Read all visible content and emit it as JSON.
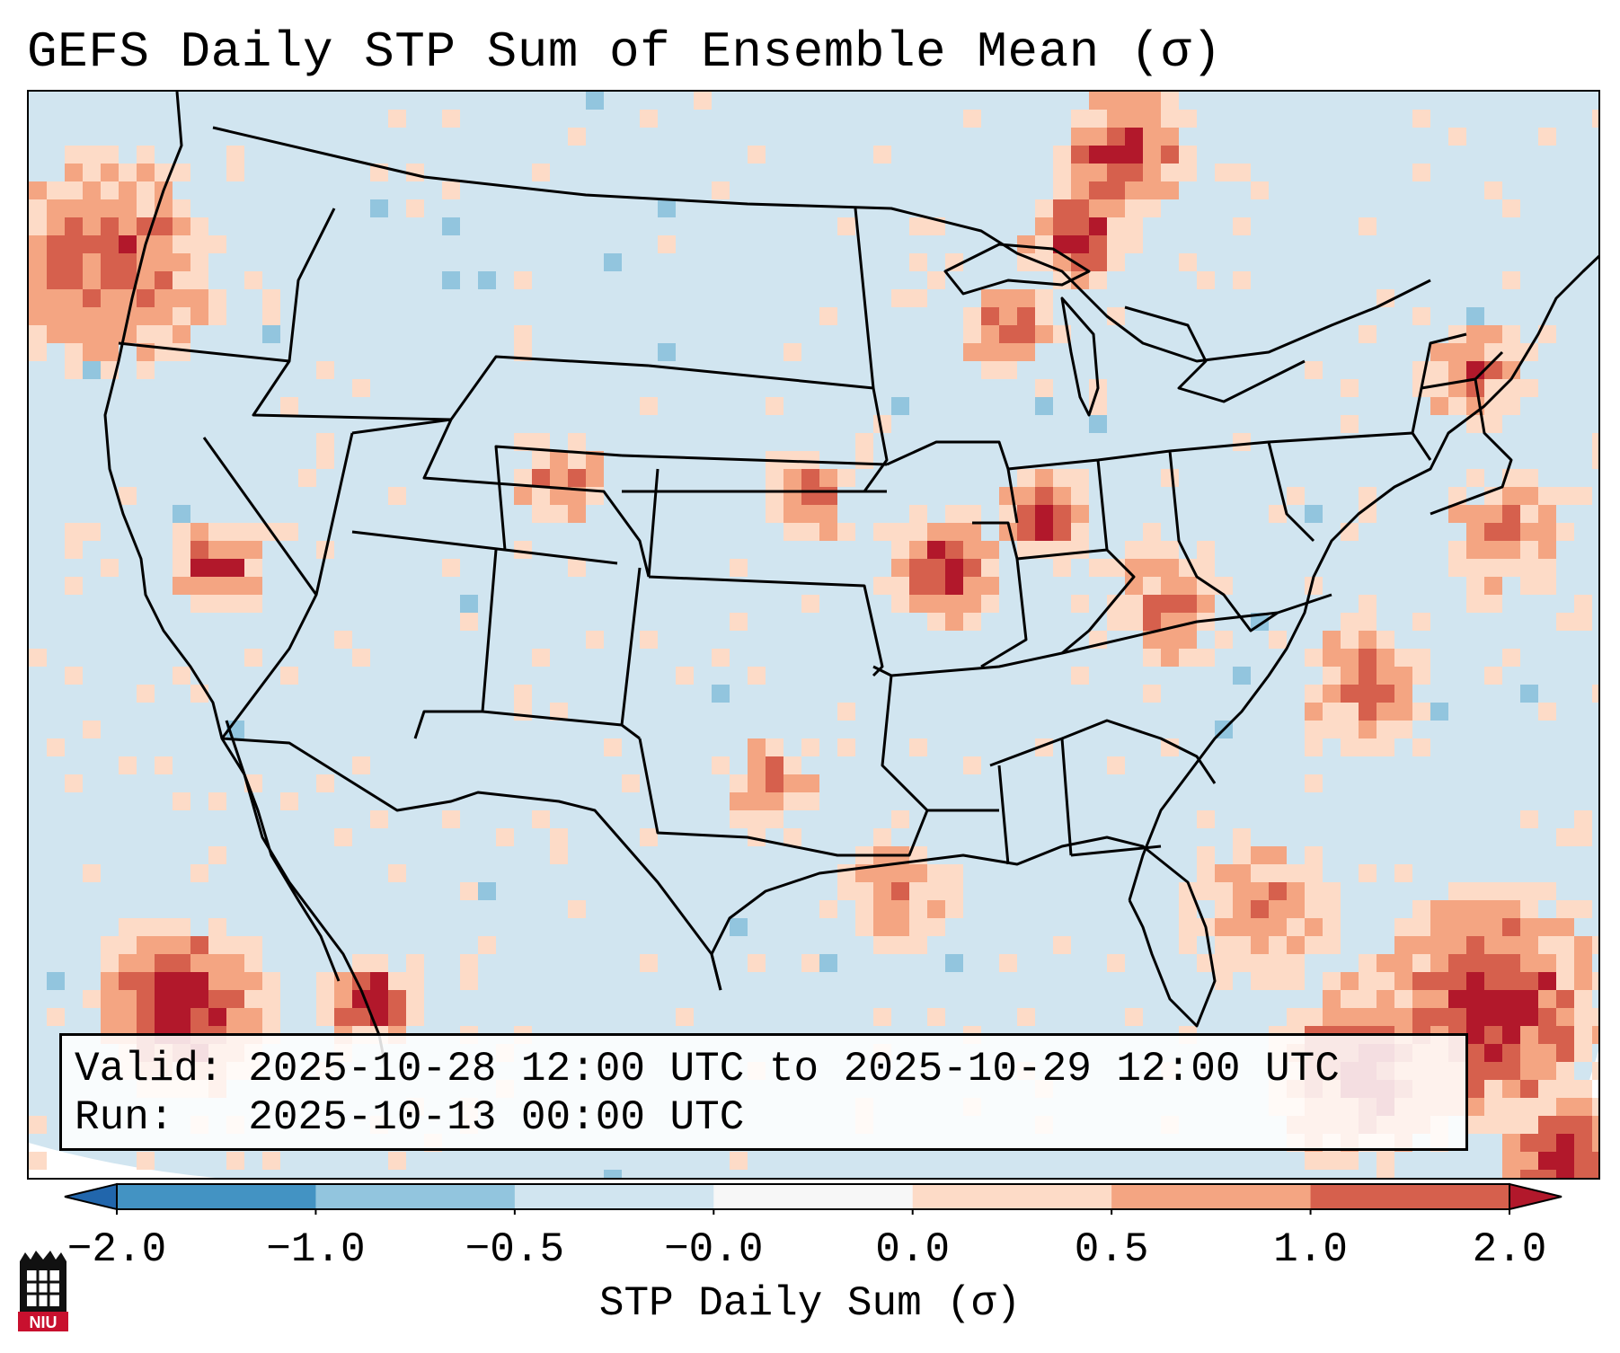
{
  "title": "GEFS Daily STP Sum of Ensemble Mean (σ)",
  "info": {
    "valid_label": "Valid:",
    "valid_value": "2025-10-28 12:00 UTC to 2025-10-29 12:00 UTC",
    "run_label": "Run:",
    "run_value": "2025-10-13 00:00 UTC"
  },
  "colorbar": {
    "label": "STP Daily Sum (σ)",
    "ticks": [
      "−2.0",
      "−1.0",
      "−0.5",
      "−0.0",
      "0.0",
      "0.5",
      "1.0",
      "2.0"
    ],
    "bins": [
      {
        "from": "−2.0",
        "to": "−1.0",
        "color": "#4393c3"
      },
      {
        "from": "−1.0",
        "to": "−0.5",
        "color": "#92c5de"
      },
      {
        "from": "−0.5",
        "to": "−0.0",
        "color": "#d1e5f0"
      },
      {
        "from": "−0.0",
        "to": "0.0",
        "color": "#f7f7f7"
      },
      {
        "from": "0.0",
        "to": "0.5",
        "color": "#fddbc7"
      },
      {
        "from": "0.5",
        "to": "1.0",
        "color": "#f4a582"
      },
      {
        "from": "1.0",
        "to": "2.0",
        "color": "#d6604d"
      }
    ],
    "under_color": "#2166ac",
    "over_color": "#b2182b"
  },
  "map_colors": {
    "background_field": "#d1e5f0",
    "weak_positive": "#fddbc7",
    "moderate_positive": "#f4a582",
    "strong_positive": "#d6604d",
    "extreme_positive": "#b2182b",
    "weak_negative": "#92c5de",
    "boundaries": "#000000"
  },
  "logo": {
    "text": "NIU",
    "color": "#c8102e"
  }
}
